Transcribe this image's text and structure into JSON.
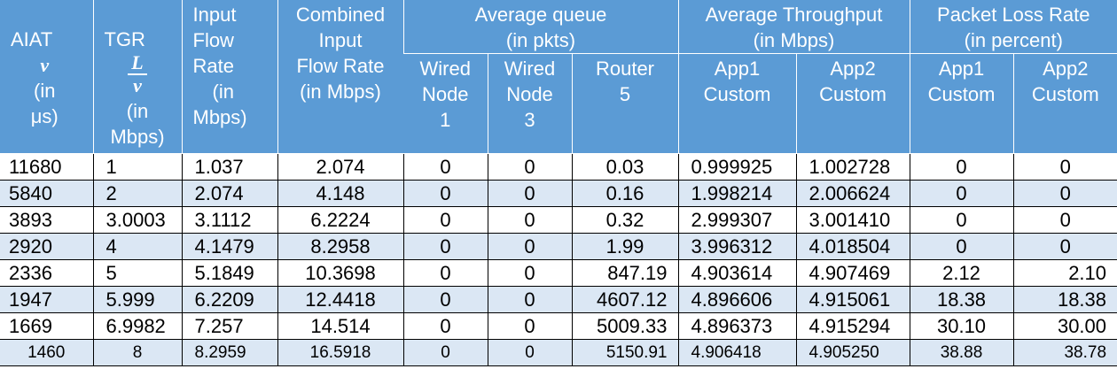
{
  "header": {
    "aiat": "AIAT",
    "aiat_var": "v",
    "aiat_unit_1": "(in",
    "aiat_unit_2": "μs)",
    "tgr": "TGR",
    "tgr_num": "L",
    "tgr_den": "v",
    "tgr_unit_1": "(in",
    "tgr_unit_2": "Mbps)",
    "input_1": "Input",
    "input_2": "Flow",
    "input_3": "Rate",
    "input_4": "(in",
    "input_5": "Mbps)",
    "combined_1": "Combined",
    "combined_2": "Input",
    "combined_3": "Flow Rate",
    "combined_4": "(in Mbps)",
    "avg_queue_1": "Average queue",
    "avg_queue_2": "(in pkts)",
    "avg_tp_1": "Average Throughput",
    "avg_tp_2": "(in Mbps)",
    "plr_1": "Packet Loss Rate",
    "plr_2": "(in percent)",
    "wn1_1": "Wired",
    "wn1_2": "Node",
    "wn1_3": "1",
    "wn3_1": "Wired",
    "wn3_2": "Node",
    "wn3_3": "3",
    "r5_1": "Router",
    "r5_2": "5",
    "tp_app1_1": "App1",
    "tp_app1_2": "Custom",
    "tp_app2_1": "App2",
    "tp_app2_2": "Custom",
    "plr_app1_1": "App1",
    "plr_app1_2": "Custom",
    "plr_app2_1": "App2",
    "plr_app2_2": "Custom"
  },
  "rows": [
    [
      "11680",
      "1",
      "1.037",
      "2.074",
      "0",
      "0",
      "0.03",
      "0.999925",
      "1.002728",
      "0",
      "0"
    ],
    [
      "5840",
      "2",
      "2.074",
      "4.148",
      "0",
      "0",
      "0.16",
      "1.998214",
      "2.006624",
      "0",
      "0"
    ],
    [
      "3893",
      "3.0003",
      "3.1112",
      "6.2224",
      "0",
      "0",
      "0.32",
      "2.999307",
      "3.001410",
      "0",
      "0"
    ],
    [
      "2920",
      "4",
      "4.1479",
      "8.2958",
      "0",
      "0",
      "1.99",
      "3.996312",
      "4.018504",
      "0",
      "0"
    ],
    [
      "2336",
      "5",
      "5.1849",
      "10.3698",
      "0",
      "0",
      "847.19",
      "4.903614",
      "4.907469",
      "2.12",
      "2.10"
    ],
    [
      "1947",
      "5.999",
      "6.2209",
      "12.4418",
      "0",
      "0",
      "4607.12",
      "4.896606",
      "4.915061",
      "18.38",
      "18.38"
    ],
    [
      "1669",
      "6.9982",
      "7.257",
      "14.514",
      "0",
      "0",
      "5009.33",
      "4.896373",
      "4.915294",
      "30.10",
      "30.00"
    ],
    [
      "1460",
      "8",
      "8.2959",
      "16.5918",
      "0",
      "0",
      "5150.91",
      "4.906418",
      "4.905250",
      "38.88",
      "38.78"
    ]
  ]
}
